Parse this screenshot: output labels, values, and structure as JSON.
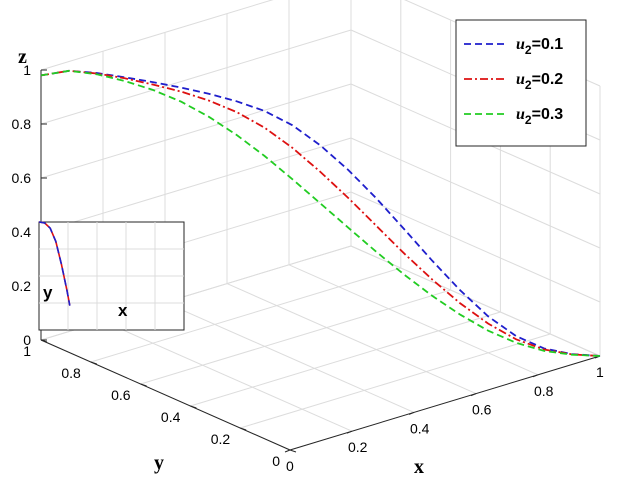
{
  "chart_data": {
    "type": "line",
    "projection": "3d",
    "xlabel": "x",
    "ylabel": "y",
    "zlabel": "z",
    "xlim": [
      0,
      1
    ],
    "ylim": [
      0,
      1
    ],
    "zlim": [
      0,
      1
    ],
    "xticks": [
      "0",
      "0.2",
      "0.4",
      "0.6",
      "0.8",
      "1"
    ],
    "yticks": [
      "0",
      "0.2",
      "0.4",
      "0.6",
      "0.8",
      "1"
    ],
    "zticks": [
      "0",
      "0.2",
      "0.4",
      "0.6",
      "0.8",
      "1"
    ],
    "grid": true,
    "legend_position": "top-right",
    "series": [
      {
        "name_var": "u",
        "name_sub": "2",
        "name_val": "=0.1",
        "color": "#1f1fcc",
        "style": "dashed",
        "points": [
          {
            "x": 0.0,
            "y": 1.0,
            "z": 0.98
          },
          {
            "x": 0.05,
            "y": 0.95,
            "z": 1.0
          },
          {
            "x": 0.1,
            "y": 0.9,
            "z": 0.995
          },
          {
            "x": 0.15,
            "y": 0.85,
            "z": 0.982
          },
          {
            "x": 0.2,
            "y": 0.8,
            "z": 0.967
          },
          {
            "x": 0.25,
            "y": 0.75,
            "z": 0.95
          },
          {
            "x": 0.3,
            "y": 0.7,
            "z": 0.93
          },
          {
            "x": 0.35,
            "y": 0.65,
            "z": 0.905
          },
          {
            "x": 0.4,
            "y": 0.6,
            "z": 0.872
          },
          {
            "x": 0.45,
            "y": 0.55,
            "z": 0.822
          },
          {
            "x": 0.5,
            "y": 0.5,
            "z": 0.75
          },
          {
            "x": 0.55,
            "y": 0.45,
            "z": 0.662
          },
          {
            "x": 0.6,
            "y": 0.4,
            "z": 0.56
          },
          {
            "x": 0.65,
            "y": 0.35,
            "z": 0.448
          },
          {
            "x": 0.7,
            "y": 0.3,
            "z": 0.335
          },
          {
            "x": 0.75,
            "y": 0.25,
            "z": 0.228
          },
          {
            "x": 0.8,
            "y": 0.2,
            "z": 0.135
          },
          {
            "x": 0.85,
            "y": 0.15,
            "z": 0.065
          },
          {
            "x": 0.9,
            "y": 0.1,
            "z": 0.022
          },
          {
            "x": 0.95,
            "y": 0.05,
            "z": 0.004
          },
          {
            "x": 1.0,
            "y": 0.0,
            "z": 0.0
          }
        ]
      },
      {
        "name_var": "u",
        "name_sub": "2",
        "name_val": "=0.2",
        "color": "#dd1111",
        "style": "dashdot",
        "points": [
          {
            "x": 0.0,
            "y": 1.0,
            "z": 0.98
          },
          {
            "x": 0.05,
            "y": 0.95,
            "z": 1.0
          },
          {
            "x": 0.1,
            "y": 0.9,
            "z": 0.993
          },
          {
            "x": 0.15,
            "y": 0.85,
            "z": 0.978
          },
          {
            "x": 0.2,
            "y": 0.8,
            "z": 0.958
          },
          {
            "x": 0.25,
            "y": 0.75,
            "z": 0.935
          },
          {
            "x": 0.3,
            "y": 0.7,
            "z": 0.905
          },
          {
            "x": 0.35,
            "y": 0.65,
            "z": 0.865
          },
          {
            "x": 0.4,
            "y": 0.6,
            "z": 0.81
          },
          {
            "x": 0.45,
            "y": 0.55,
            "z": 0.738
          },
          {
            "x": 0.5,
            "y": 0.5,
            "z": 0.652
          },
          {
            "x": 0.55,
            "y": 0.45,
            "z": 0.558
          },
          {
            "x": 0.6,
            "y": 0.4,
            "z": 0.458
          },
          {
            "x": 0.65,
            "y": 0.35,
            "z": 0.358
          },
          {
            "x": 0.7,
            "y": 0.3,
            "z": 0.265
          },
          {
            "x": 0.75,
            "y": 0.25,
            "z": 0.18
          },
          {
            "x": 0.8,
            "y": 0.2,
            "z": 0.108
          },
          {
            "x": 0.85,
            "y": 0.15,
            "z": 0.053
          },
          {
            "x": 0.9,
            "y": 0.1,
            "z": 0.018
          },
          {
            "x": 0.95,
            "y": 0.05,
            "z": 0.003
          },
          {
            "x": 1.0,
            "y": 0.0,
            "z": 0.0
          }
        ]
      },
      {
        "name_var": "u",
        "name_sub": "2",
        "name_val": "=0.3",
        "color": "#22cc22",
        "style": "dashed",
        "points": [
          {
            "x": 0.0,
            "y": 1.0,
            "z": 0.98
          },
          {
            "x": 0.05,
            "y": 0.95,
            "z": 1.0
          },
          {
            "x": 0.1,
            "y": 0.9,
            "z": 0.99
          },
          {
            "x": 0.15,
            "y": 0.85,
            "z": 0.968
          },
          {
            "x": 0.2,
            "y": 0.8,
            "z": 0.938
          },
          {
            "x": 0.25,
            "y": 0.75,
            "z": 0.898
          },
          {
            "x": 0.3,
            "y": 0.7,
            "z": 0.845
          },
          {
            "x": 0.35,
            "y": 0.65,
            "z": 0.78
          },
          {
            "x": 0.4,
            "y": 0.6,
            "z": 0.705
          },
          {
            "x": 0.45,
            "y": 0.55,
            "z": 0.622
          },
          {
            "x": 0.5,
            "y": 0.5,
            "z": 0.535
          },
          {
            "x": 0.55,
            "y": 0.45,
            "z": 0.448
          },
          {
            "x": 0.6,
            "y": 0.4,
            "z": 0.362
          },
          {
            "x": 0.65,
            "y": 0.35,
            "z": 0.28
          },
          {
            "x": 0.7,
            "y": 0.3,
            "z": 0.205
          },
          {
            "x": 0.75,
            "y": 0.25,
            "z": 0.138
          },
          {
            "x": 0.8,
            "y": 0.2,
            "z": 0.082
          },
          {
            "x": 0.85,
            "y": 0.15,
            "z": 0.04
          },
          {
            "x": 0.9,
            "y": 0.1,
            "z": 0.013
          },
          {
            "x": 0.95,
            "y": 0.05,
            "z": 0.002
          },
          {
            "x": 1.0,
            "y": 0.0,
            "z": 0.0
          }
        ]
      }
    ],
    "inset": {
      "xlabel": "x",
      "ylabel": "y",
      "series": [
        {
          "color": "#dd1111",
          "style": "solid",
          "points": [
            {
              "x": 0.0,
              "y": 1.0
            },
            {
              "x": 0.02,
              "y": 0.99
            },
            {
              "x": 0.04,
              "y": 0.93
            },
            {
              "x": 0.06,
              "y": 0.78
            },
            {
              "x": 0.08,
              "y": 0.52
            },
            {
              "x": 0.1,
              "y": 0.22
            },
            {
              "x": 0.11,
              "y": 0.05
            }
          ]
        },
        {
          "color": "#1f1fcc",
          "style": "dashed",
          "points": [
            {
              "x": 0.0,
              "y": 1.0
            },
            {
              "x": 0.02,
              "y": 0.99
            },
            {
              "x": 0.04,
              "y": 0.93
            },
            {
              "x": 0.06,
              "y": 0.78
            },
            {
              "x": 0.08,
              "y": 0.52
            },
            {
              "x": 0.1,
              "y": 0.22
            },
            {
              "x": 0.11,
              "y": 0.05
            }
          ]
        }
      ]
    }
  }
}
